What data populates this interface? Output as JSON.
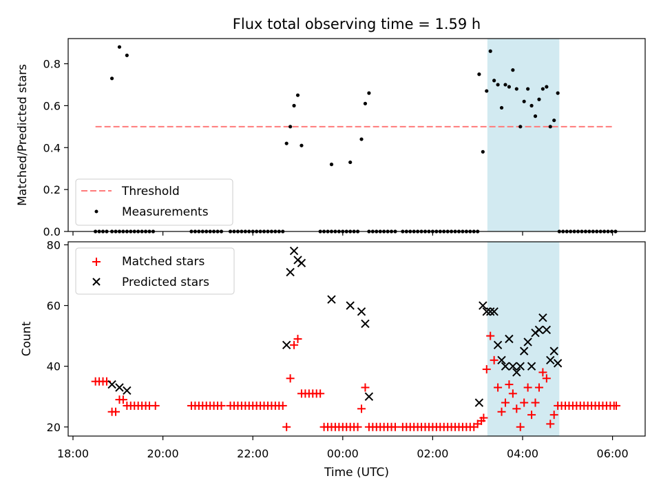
{
  "title": "Flux total observing time = 1.59 h",
  "colors": {
    "threshold": "#ff7a7a",
    "measurement": "#000000",
    "matched": "#ff0000",
    "predicted": "#000000",
    "highlight": "#add8e6"
  },
  "highlight_range": [
    "03:13",
    "04:49"
  ],
  "x_ticks": [
    "18:00",
    "20:00",
    "22:00",
    "00:00",
    "02:00",
    "04:00",
    "06:00"
  ],
  "xlabel": "Time (UTC)",
  "chart_data": [
    {
      "type": "scatter",
      "ylabel": "Matched/Predicted stars",
      "ylim": [
        0,
        0.92
      ],
      "yticks": [
        "0.0",
        "0.2",
        "0.4",
        "0.6",
        "0.8"
      ],
      "legend_position": "lower-left",
      "threshold": {
        "name": "Threshold",
        "value": 0.5,
        "x_range": [
          "18:30",
          "06:00"
        ]
      },
      "series": [
        {
          "name": "Measurements",
          "points": [
            [
              "18:52",
              0.73
            ],
            [
              "19:02",
              0.88
            ],
            [
              "19:12",
              0.84
            ],
            [
              "22:45",
              0.42
            ],
            [
              "22:50",
              0.5
            ],
            [
              "22:55",
              0.6
            ],
            [
              "23:00",
              0.65
            ],
            [
              "23:05",
              0.41
            ],
            [
              "23:45",
              0.32
            ],
            [
              "00:10",
              0.33
            ],
            [
              "00:25",
              0.44
            ],
            [
              "00:30",
              0.61
            ],
            [
              "00:35",
              0.66
            ],
            [
              "03:02",
              0.75
            ],
            [
              "03:07",
              0.38
            ],
            [
              "03:12",
              0.67
            ],
            [
              "03:17",
              0.86
            ],
            [
              "03:22",
              0.72
            ],
            [
              "03:27",
              0.7
            ],
            [
              "03:32",
              0.59
            ],
            [
              "03:37",
              0.7
            ],
            [
              "03:42",
              0.69
            ],
            [
              "03:47",
              0.77
            ],
            [
              "03:52",
              0.68
            ],
            [
              "03:57",
              0.5
            ],
            [
              "04:02",
              0.62
            ],
            [
              "04:07",
              0.68
            ],
            [
              "04:12",
              0.6
            ],
            [
              "04:17",
              0.55
            ],
            [
              "04:22",
              0.63
            ],
            [
              "04:27",
              0.68
            ],
            [
              "04:32",
              0.69
            ],
            [
              "04:37",
              0.5
            ],
            [
              "04:42",
              0.53
            ],
            [
              "04:47",
              0.66
            ]
          ],
          "zero_ranges": [
            [
              "18:30",
              "18:45"
            ],
            [
              "18:52",
              "19:50"
            ],
            [
              "20:38",
              "21:20"
            ],
            [
              "21:30",
              "22:42"
            ],
            [
              "23:30",
              "00:05"
            ],
            [
              "00:10",
              "00:22"
            ],
            [
              "00:35",
              "01:10"
            ],
            [
              "01:20",
              "03:00"
            ],
            [
              "04:49",
              "06:05"
            ]
          ]
        }
      ]
    },
    {
      "type": "scatter",
      "ylabel": "Count",
      "ylim": [
        17,
        81
      ],
      "yticks": [
        "20",
        "40",
        "60",
        "80"
      ],
      "legend_position": "upper-left",
      "series": [
        {
          "name": "Matched stars",
          "marker": "plus",
          "points": [
            [
              "18:30",
              35
            ],
            [
              "18:35",
              35
            ],
            [
              "18:40",
              35
            ],
            [
              "18:45",
              35
            ],
            [
              "18:52",
              25
            ],
            [
              "18:57",
              25
            ],
            [
              "19:02",
              29
            ],
            [
              "19:07",
              29
            ],
            [
              "19:12",
              27
            ],
            [
              "19:17",
              27
            ],
            [
              "19:22",
              27
            ],
            [
              "19:27",
              27
            ],
            [
              "19:32",
              27
            ],
            [
              "19:37",
              27
            ],
            [
              "19:42",
              27
            ],
            [
              "19:50",
              27
            ],
            [
              "20:38",
              27
            ],
            [
              "20:43",
              27
            ],
            [
              "20:48",
              27
            ],
            [
              "20:53",
              27
            ],
            [
              "20:58",
              27
            ],
            [
              "21:03",
              27
            ],
            [
              "21:08",
              27
            ],
            [
              "21:13",
              27
            ],
            [
              "21:18",
              27
            ],
            [
              "21:30",
              27
            ],
            [
              "21:35",
              27
            ],
            [
              "21:40",
              27
            ],
            [
              "21:45",
              27
            ],
            [
              "21:50",
              27
            ],
            [
              "21:55",
              27
            ],
            [
              "22:00",
              27
            ],
            [
              "22:05",
              27
            ],
            [
              "22:10",
              27
            ],
            [
              "22:15",
              27
            ],
            [
              "22:20",
              27
            ],
            [
              "22:25",
              27
            ],
            [
              "22:30",
              27
            ],
            [
              "22:35",
              27
            ],
            [
              "22:40",
              27
            ],
            [
              "22:45",
              20
            ],
            [
              "22:50",
              36
            ],
            [
              "22:55",
              47
            ],
            [
              "23:00",
              49
            ],
            [
              "23:05",
              31
            ],
            [
              "23:10",
              31
            ],
            [
              "23:15",
              31
            ],
            [
              "23:20",
              31
            ],
            [
              "23:25",
              31
            ],
            [
              "23:30",
              31
            ],
            [
              "23:35",
              20
            ],
            [
              "23:40",
              20
            ],
            [
              "23:45",
              20
            ],
            [
              "23:50",
              20
            ],
            [
              "23:55",
              20
            ],
            [
              "00:00",
              20
            ],
            [
              "00:05",
              20
            ],
            [
              "00:10",
              20
            ],
            [
              "00:15",
              20
            ],
            [
              "00:20",
              20
            ],
            [
              "00:25",
              26
            ],
            [
              "00:30",
              33
            ],
            [
              "00:35",
              20
            ],
            [
              "00:40",
              20
            ],
            [
              "00:45",
              20
            ],
            [
              "00:50",
              20
            ],
            [
              "00:55",
              20
            ],
            [
              "01:00",
              20
            ],
            [
              "01:05",
              20
            ],
            [
              "01:10",
              20
            ],
            [
              "01:20",
              20
            ],
            [
              "01:25",
              20
            ],
            [
              "01:30",
              20
            ],
            [
              "01:35",
              20
            ],
            [
              "01:40",
              20
            ],
            [
              "01:45",
              20
            ],
            [
              "01:50",
              20
            ],
            [
              "01:55",
              20
            ],
            [
              "02:00",
              20
            ],
            [
              "02:05",
              20
            ],
            [
              "02:10",
              20
            ],
            [
              "02:15",
              20
            ],
            [
              "02:20",
              20
            ],
            [
              "02:25",
              20
            ],
            [
              "02:30",
              20
            ],
            [
              "02:35",
              20
            ],
            [
              "02:40",
              20
            ],
            [
              "02:45",
              20
            ],
            [
              "02:50",
              20
            ],
            [
              "02:55",
              20
            ],
            [
              "03:00",
              21
            ],
            [
              "03:05",
              22
            ],
            [
              "03:08",
              23
            ],
            [
              "03:12",
              39
            ],
            [
              "03:17",
              50
            ],
            [
              "03:22",
              42
            ],
            [
              "03:27",
              33
            ],
            [
              "03:32",
              25
            ],
            [
              "03:37",
              28
            ],
            [
              "03:42",
              34
            ],
            [
              "03:47",
              31
            ],
            [
              "03:52",
              26
            ],
            [
              "03:57",
              20
            ],
            [
              "04:02",
              28
            ],
            [
              "04:07",
              33
            ],
            [
              "04:12",
              24
            ],
            [
              "04:17",
              28
            ],
            [
              "04:22",
              33
            ],
            [
              "04:27",
              38
            ],
            [
              "04:32",
              36
            ],
            [
              "04:37",
              21
            ],
            [
              "04:42",
              24
            ],
            [
              "04:47",
              27
            ],
            [
              "04:52",
              27
            ],
            [
              "04:57",
              27
            ],
            [
              "05:02",
              27
            ],
            [
              "05:07",
              27
            ],
            [
              "05:12",
              27
            ],
            [
              "05:17",
              27
            ],
            [
              "05:22",
              27
            ],
            [
              "05:27",
              27
            ],
            [
              "05:32",
              27
            ],
            [
              "05:37",
              27
            ],
            [
              "05:42",
              27
            ],
            [
              "05:47",
              27
            ],
            [
              "05:52",
              27
            ],
            [
              "05:57",
              27
            ],
            [
              "06:02",
              27
            ],
            [
              "06:05",
              27
            ]
          ]
        },
        {
          "name": "Predicted stars",
          "marker": "x",
          "points": [
            [
              "18:52",
              34
            ],
            [
              "19:02",
              33
            ],
            [
              "19:12",
              32
            ],
            [
              "22:45",
              47
            ],
            [
              "22:50",
              71
            ],
            [
              "22:55",
              78
            ],
            [
              "23:00",
              75
            ],
            [
              "23:05",
              74
            ],
            [
              "23:45",
              62
            ],
            [
              "00:10",
              60
            ],
            [
              "00:25",
              58
            ],
            [
              "00:30",
              54
            ],
            [
              "00:35",
              30
            ],
            [
              "03:02",
              28
            ],
            [
              "03:07",
              60
            ],
            [
              "03:12",
              58
            ],
            [
              "03:17",
              58
            ],
            [
              "03:22",
              58
            ],
            [
              "03:27",
              47
            ],
            [
              "03:32",
              42
            ],
            [
              "03:37",
              40
            ],
            [
              "03:42",
              49
            ],
            [
              "03:47",
              40
            ],
            [
              "03:52",
              38
            ],
            [
              "03:57",
              40
            ],
            [
              "04:02",
              45
            ],
            [
              "04:07",
              48
            ],
            [
              "04:12",
              40
            ],
            [
              "04:17",
              51
            ],
            [
              "04:22",
              52
            ],
            [
              "04:27",
              56
            ],
            [
              "04:32",
              52
            ],
            [
              "04:37",
              42
            ],
            [
              "04:42",
              45
            ],
            [
              "04:47",
              41
            ]
          ]
        }
      ]
    }
  ]
}
